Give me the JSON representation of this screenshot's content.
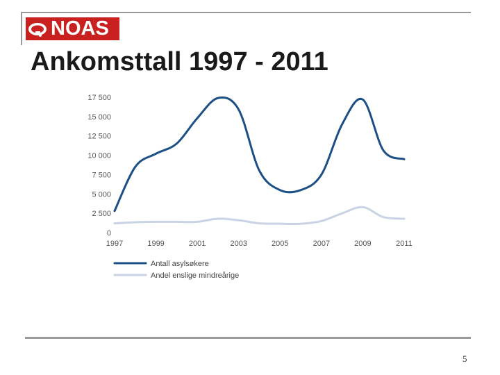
{
  "slide": {
    "logo_text": "NOAS",
    "title": "Ankomsttall 1997 - 2011",
    "page_number": "5"
  },
  "colors": {
    "brand_red": "#c8211f",
    "series_primary": "#1b4f86",
    "series_secondary": "#c9d3e3"
  },
  "chart_data": {
    "type": "line",
    "title": "",
    "xlabel": "",
    "ylabel": "",
    "x": [
      1997,
      1998,
      1999,
      2000,
      2001,
      2002,
      2003,
      2004,
      2005,
      2006,
      2007,
      2008,
      2009,
      2010,
      2011
    ],
    "xticks": [
      1997,
      1999,
      2001,
      2003,
      2005,
      2007,
      2009,
      2011
    ],
    "xtick_labels": [
      "1997",
      "1999",
      "2001",
      "2003",
      "2005",
      "2007",
      "2009",
      "2011"
    ],
    "ylim": [
      0,
      17500
    ],
    "yticks": [
      0,
      2500,
      5000,
      7500,
      10000,
      12500,
      15000,
      17500
    ],
    "ytick_labels": [
      "0",
      "2 500",
      "5 000",
      "7 500",
      "10 000",
      "12 500",
      "15 000",
      "17 500"
    ],
    "grid": false,
    "legend_position": "bottom-left",
    "series": [
      {
        "name": "Antall asylsøkere",
        "color": "#1b4f86",
        "values": [
          2800,
          8500,
          10200,
          11500,
          14800,
          17400,
          15900,
          8000,
          5500,
          5500,
          7500,
          14000,
          17200,
          10600,
          9500
        ]
      },
      {
        "name": "Andel enslige mindreårige",
        "color": "#c9d3e3",
        "values": [
          1200,
          1350,
          1400,
          1400,
          1400,
          1800,
          1600,
          1200,
          1150,
          1150,
          1500,
          2500,
          3300,
          2000,
          1800
        ]
      }
    ]
  }
}
